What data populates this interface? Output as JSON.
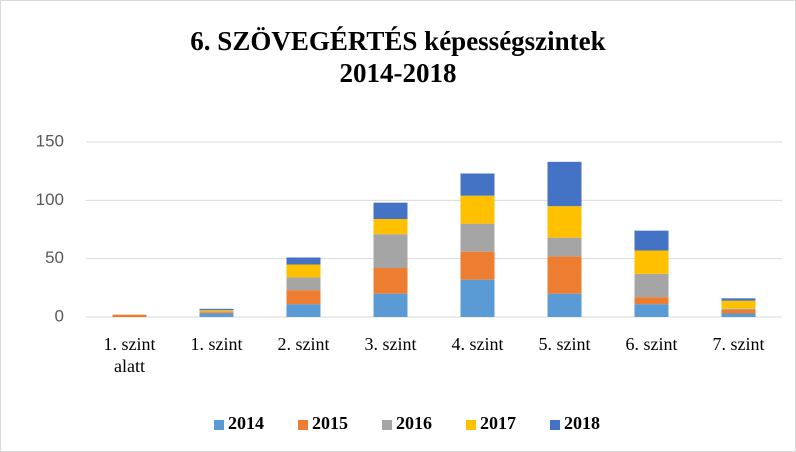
{
  "chart_data": {
    "type": "stacked_bar",
    "title": "6. SZÖVEGÉRTÉS képességszintek",
    "subtitle": "2014-2018",
    "categories": [
      "1. szint alatt",
      "1. szint",
      "2. szint",
      "3. szint",
      "4. szint",
      "5. szint",
      "6. szint",
      "7. szint"
    ],
    "series": [
      {
        "name": "2014",
        "color": "#5b9bd5",
        "values": [
          0,
          3,
          11,
          20,
          32,
          20,
          11,
          3
        ]
      },
      {
        "name": "2015",
        "color": "#ed7d31",
        "values": [
          2,
          1,
          12,
          22,
          24,
          32,
          6,
          3
        ]
      },
      {
        "name": "2016",
        "color": "#a5a5a5",
        "values": [
          0,
          1,
          11,
          29,
          24,
          16,
          20,
          1
        ]
      },
      {
        "name": "2017",
        "color": "#ffc000",
        "values": [
          0,
          1,
          11,
          13,
          24,
          27,
          20,
          7
        ]
      },
      {
        "name": "2018",
        "color": "#4472c4",
        "values": [
          0,
          1,
          6,
          14,
          19,
          38,
          17,
          2
        ]
      }
    ],
    "ylim": [
      0,
      150
    ],
    "yticks": [
      0,
      50,
      100,
      150
    ],
    "grid": true,
    "legend": "bottom"
  }
}
